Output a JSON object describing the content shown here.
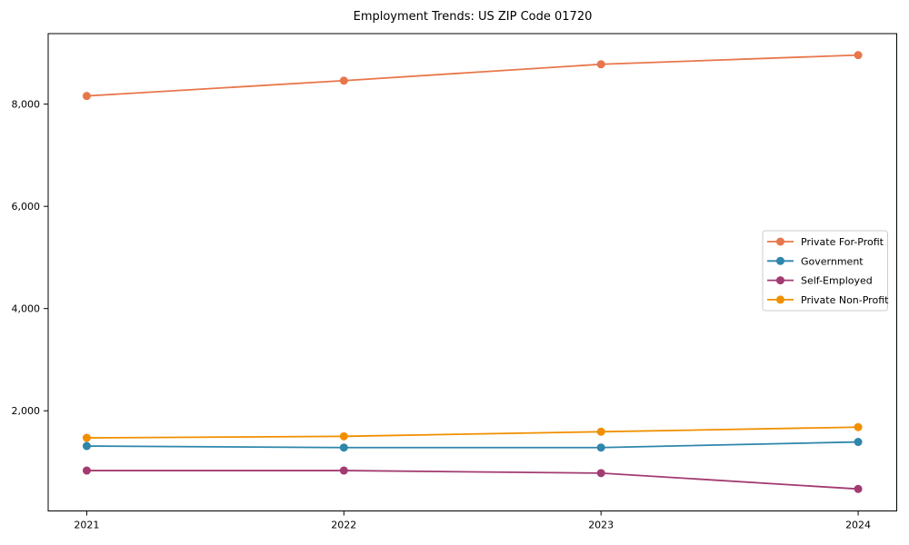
{
  "title": "Employment Trends: US ZIP Code 01720",
  "chart_data": {
    "type": "line",
    "title": "Employment Trends: US ZIP Code 01720",
    "x": [
      2021,
      2022,
      2023,
      2024
    ],
    "x_tick_labels": [
      "2021",
      "2022",
      "2023",
      "2024"
    ],
    "series": [
      {
        "name": "Private For-Profit",
        "color": "#E8764B",
        "values": [
          8160,
          8460,
          8780,
          8960
        ]
      },
      {
        "name": "Government",
        "color": "#2E86AB",
        "values": [
          1310,
          1280,
          1280,
          1390
        ]
      },
      {
        "name": "Self-Employed",
        "color": "#A23B72",
        "values": [
          830,
          830,
          780,
          470
        ]
      },
      {
        "name": "Private Non-Profit",
        "color": "#F18F01",
        "values": [
          1470,
          1500,
          1590,
          1680
        ]
      }
    ],
    "y_ticks": [
      2000,
      4000,
      6000,
      8000
    ],
    "y_tick_labels": [
      "2,000",
      "4,000",
      "6,000",
      "8,000"
    ],
    "xlim": [
      2020.85,
      2024.15
    ],
    "ylim": [
      40,
      9380
    ],
    "xlabel": "",
    "ylabel": "",
    "grid": false,
    "marker": "circle",
    "legend_position": "center-right",
    "legend_border_color": "#cccccc",
    "axis_color": "#000000",
    "background_color": "#ffffff"
  }
}
